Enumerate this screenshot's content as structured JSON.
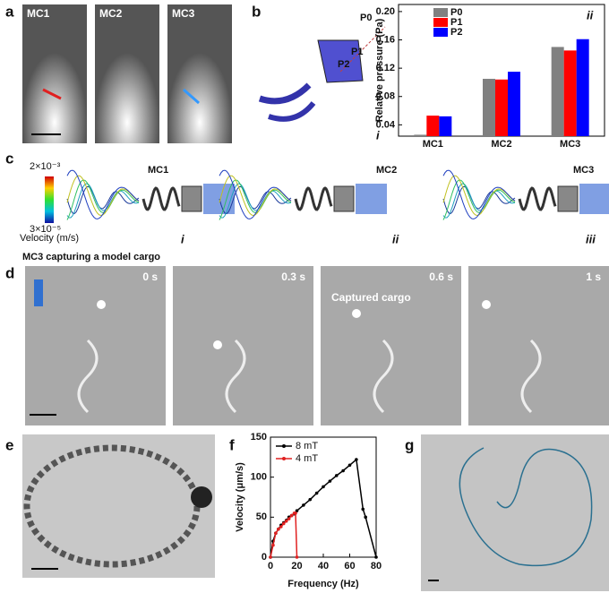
{
  "panel_labels": [
    "a",
    "b",
    "c",
    "d",
    "e",
    "f",
    "g"
  ],
  "panel_a": {
    "labels": [
      "MC1",
      "MC2",
      "MC3"
    ]
  },
  "panel_b": {
    "points": [
      "P0",
      "P1",
      "P2"
    ],
    "subpanel": "i"
  },
  "panel_c": {
    "colorbar_max": "2×10⁻³",
    "colorbar_min": "3×10⁻⁵",
    "colorbar_label": "Velocity (m/s)",
    "labels": [
      "MC1",
      "MC2",
      "MC3"
    ],
    "subpanels": [
      "i",
      "ii",
      "iii"
    ]
  },
  "panel_d": {
    "title": "MC3 capturing a model cargo",
    "times": [
      "0 s",
      "0.3 s",
      "0.6 s",
      "1 s"
    ],
    "annotation": "Captured cargo"
  },
  "chart_data": [
    {
      "type": "bar",
      "annotation": "ii",
      "y_label": "Relative pressure (Pa)",
      "categories": [
        "MC1",
        "MC2",
        "MC3"
      ],
      "series": [
        {
          "name": "P0",
          "color": "#808080",
          "values": [
            0.026,
            0.105,
            0.15
          ]
        },
        {
          "name": "P1",
          "color": "#ff0000",
          "values": [
            0.053,
            0.104,
            0.145
          ]
        },
        {
          "name": "P2",
          "color": "#0000ff",
          "values": [
            0.052,
            0.115,
            0.161
          ]
        }
      ],
      "ylim": [
        0.024,
        0.21
      ],
      "yticks": [
        0.04,
        0.08,
        0.12,
        0.16,
        {
          "value": 0.2,
          "label": "0.20"
        }
      ],
      "legend": "upper-left"
    },
    {
      "type": "line",
      "x_label": "Frequency (Hz)",
      "y_label": "Velocity (μm/s)",
      "series": [
        {
          "name": "8 mT",
          "color": "#000000",
          "x": [
            0,
            2,
            4,
            6,
            8,
            10,
            12,
            14,
            16,
            18,
            20,
            25,
            30,
            35,
            40,
            45,
            50,
            55,
            60,
            65,
            70,
            72,
            80
          ],
          "values": [
            0,
            20,
            30,
            35,
            40,
            43,
            46,
            50,
            52,
            54,
            58,
            65,
            72,
            80,
            88,
            95,
            102,
            108,
            115,
            122,
            60,
            50,
            0
          ]
        },
        {
          "name": "4 mT",
          "color": "#e02020",
          "x": [
            0,
            2,
            4,
            6,
            8,
            10,
            12,
            14,
            16,
            18,
            19,
            20
          ],
          "values": [
            0,
            15,
            30,
            35,
            38,
            42,
            45,
            48,
            52,
            55,
            55,
            0
          ]
        }
      ],
      "xlim": [
        0,
        80
      ],
      "xticks": [
        0,
        20,
        40,
        60,
        80
      ],
      "ylim": [
        0,
        150
      ],
      "yticks": [
        0,
        50,
        100,
        150
      ],
      "legend": "upper-left"
    }
  ]
}
